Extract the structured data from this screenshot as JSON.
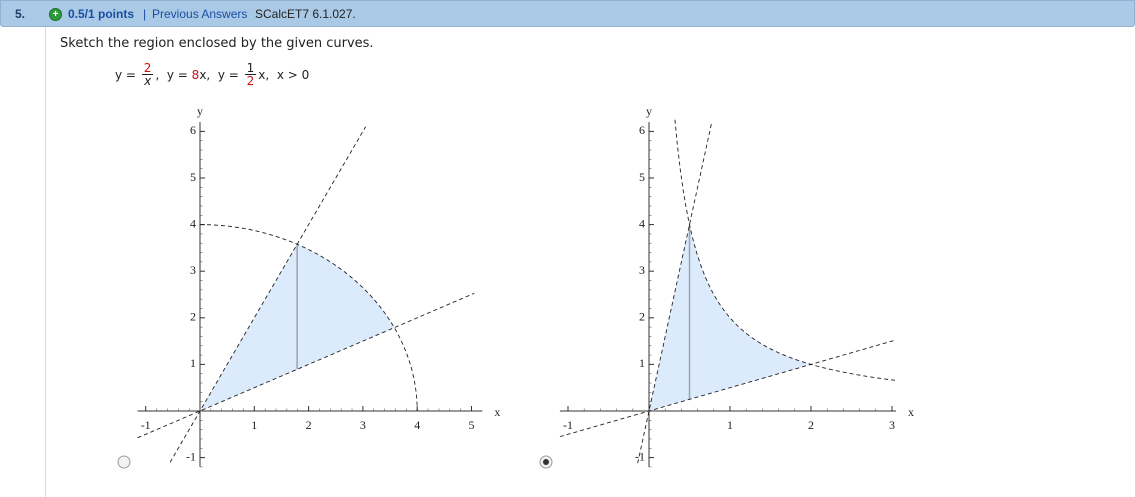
{
  "header": {
    "number": "5.",
    "icon": "+",
    "points": "0.5/1 points",
    "separator": "|",
    "link": "Previous Answers",
    "code": "SCalcET7 6.1.027."
  },
  "question": {
    "text": "Sketch the region enclosed by the given curves.",
    "equation": {
      "p1": "y = ",
      "f1_num": "2",
      "f1_den": "x",
      "p2": ",  y = ",
      "k": "8",
      "p3": "x,  y = ",
      "f2_num": "1",
      "f2_den": "2",
      "p4": "x,  x > 0"
    }
  },
  "graphs": [
    {
      "x_label": "x",
      "y_label": "y",
      "xticks": [
        -1,
        1,
        2,
        3,
        4,
        5
      ],
      "yticks": [
        -1,
        1,
        2,
        3,
        4,
        5,
        6
      ],
      "selected": false
    },
    {
      "x_label": "x",
      "y_label": "y",
      "xticks": [
        -1,
        1,
        2,
        3
      ],
      "yticks": [
        -1,
        1,
        2,
        3,
        4,
        5,
        6
      ],
      "selected": true
    }
  ]
}
